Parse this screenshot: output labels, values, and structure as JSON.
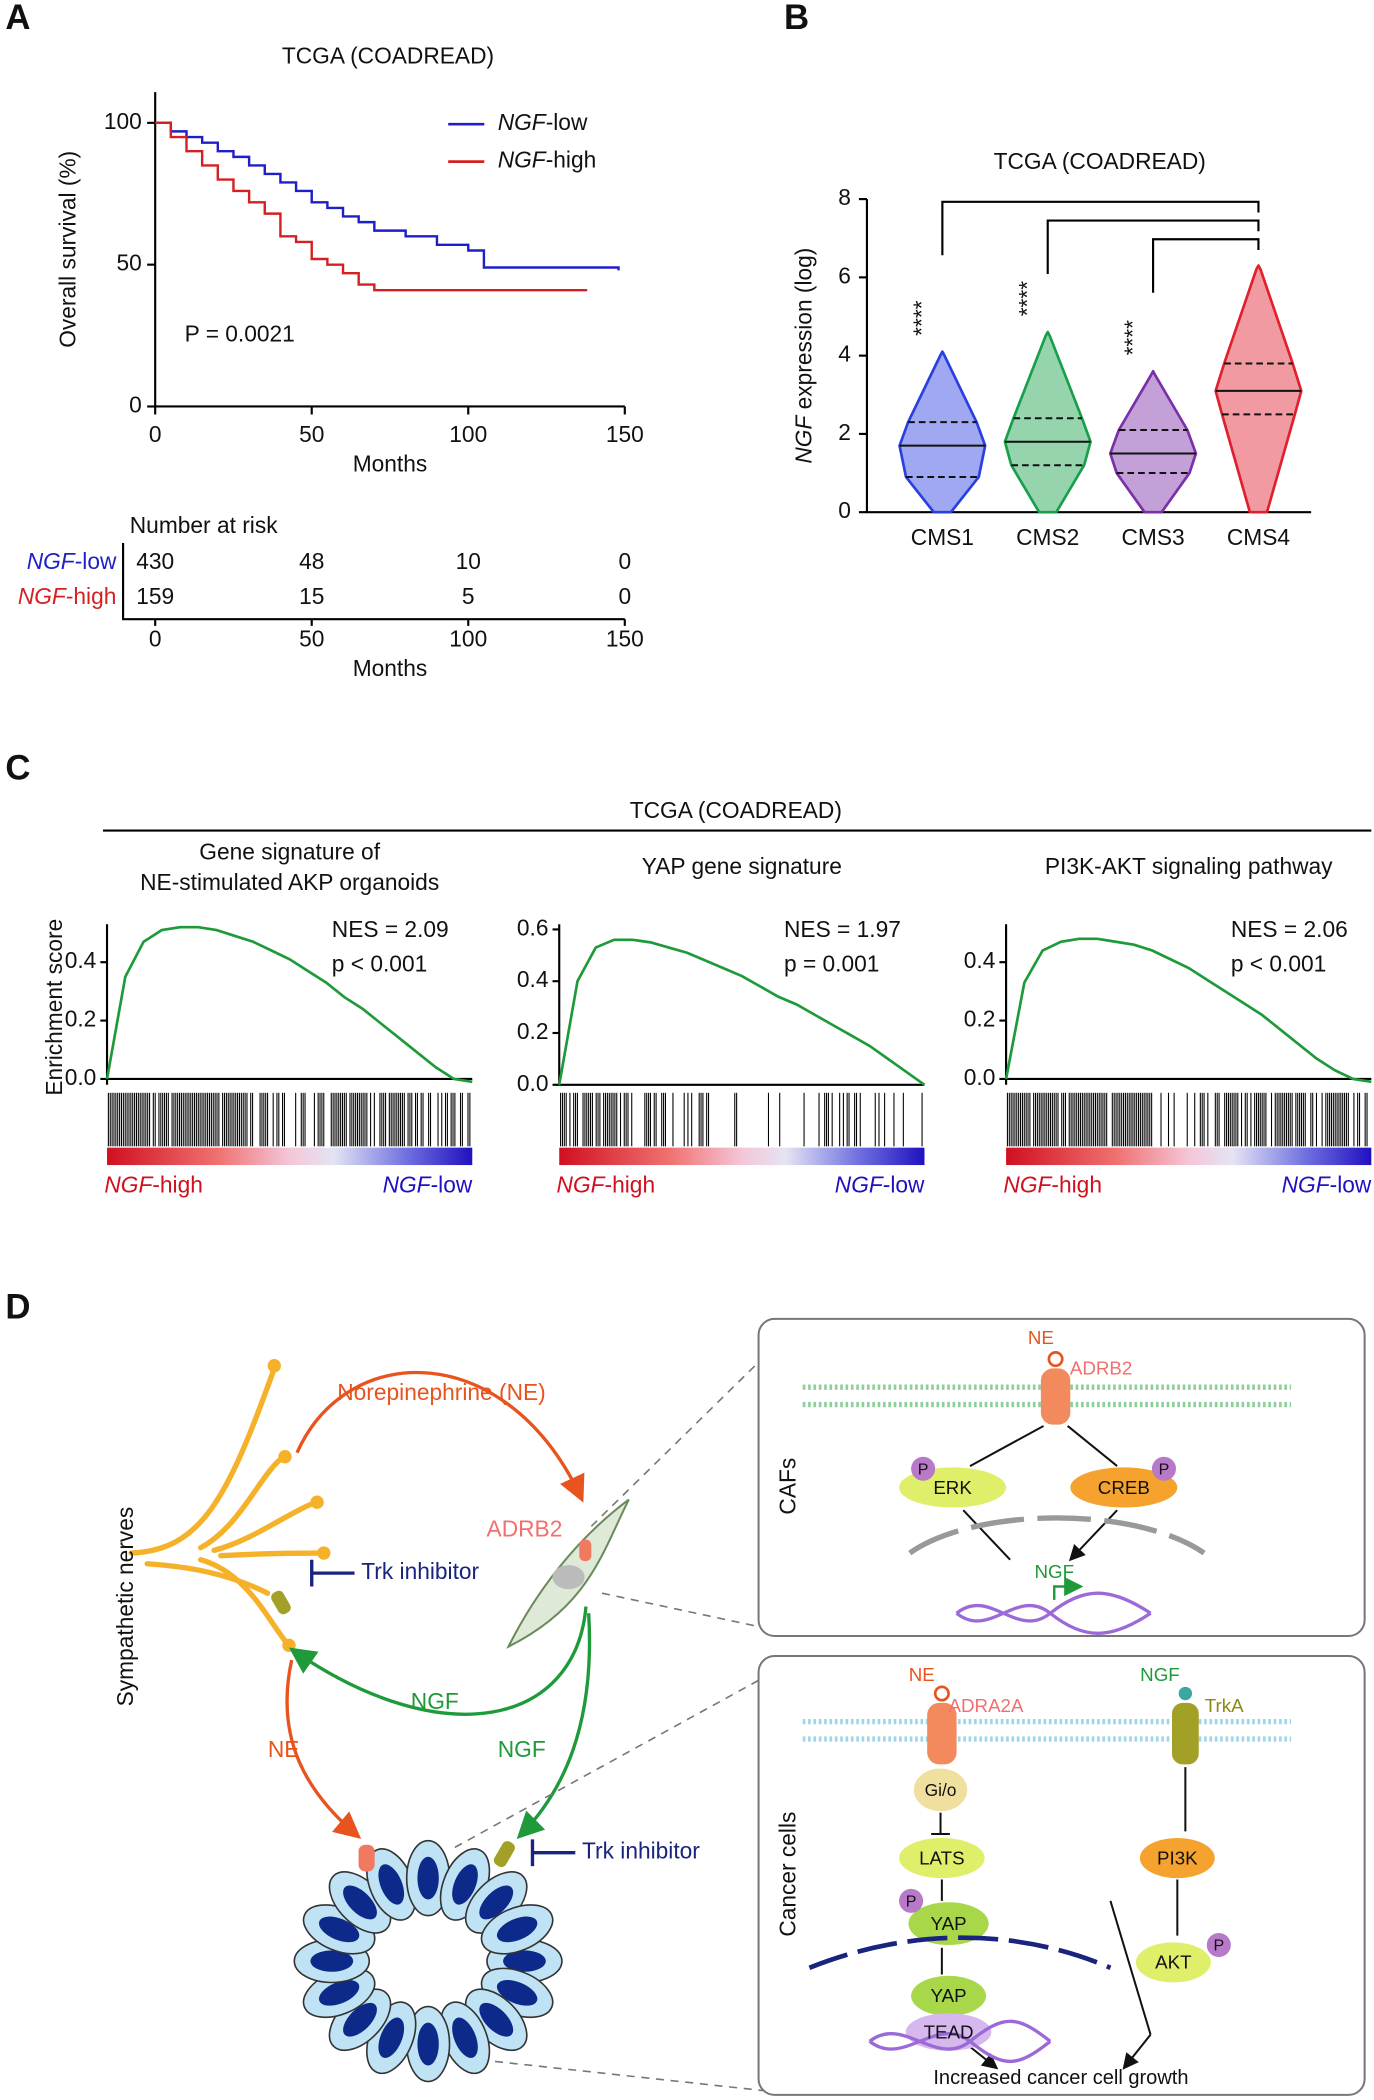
{
  "panel_labels": [
    "A",
    "B",
    "C",
    "D"
  ],
  "panel_c_header": "TCGA (COADREAD)",
  "chart_data": [
    {
      "type": "km",
      "title": "TCGA (COADREAD)",
      "x_label": "Months",
      "y_label": "Overall survival (%)",
      "annotation": "P = 0.0021",
      "xlim": [
        0,
        150
      ],
      "ylim": [
        0,
        100
      ],
      "xticks": [
        0,
        50,
        100,
        150
      ],
      "yticks": [
        0,
        50,
        100
      ],
      "series": [
        {
          "name": "NGF-low",
          "color": "#1f1fc8",
          "x": [
            0,
            5,
            10,
            15,
            20,
            25,
            30,
            35,
            40,
            45,
            50,
            55,
            60,
            65,
            70,
            80,
            90,
            100,
            105,
            148
          ],
          "values": [
            100,
            97,
            95,
            93,
            90,
            88,
            85,
            82,
            79,
            76,
            72,
            70,
            67,
            65,
            62,
            60,
            57,
            55,
            49,
            48
          ]
        },
        {
          "name": "NGF-high",
          "color": "#d42020",
          "x": [
            0,
            5,
            10,
            15,
            20,
            25,
            30,
            35,
            40,
            45,
            50,
            55,
            60,
            65,
            70,
            138
          ],
          "values": [
            100,
            95,
            90,
            85,
            80,
            76,
            72,
            68,
            60,
            58,
            52,
            50,
            47,
            43,
            41,
            41
          ]
        }
      ],
      "risk_table": {
        "title": "Number at risk",
        "x_label": "Months",
        "rows": [
          {
            "name": "NGF-low",
            "values": [
              430,
              48,
              10,
              0
            ]
          },
          {
            "name": "NGF-high",
            "values": [
              159,
              15,
              5,
              0
            ]
          }
        ]
      }
    },
    {
      "type": "violin",
      "title": "TCGA (COADREAD)",
      "y_label": "NGF expression (log)",
      "categories": [
        "CMS1",
        "CMS2",
        "CMS3",
        "CMS4"
      ],
      "colors": [
        "#2a3fe0",
        "#17a04a",
        "#7b2fa8",
        "#e0202e"
      ],
      "min": [
        0,
        0,
        0,
        0
      ],
      "q1": [
        0.9,
        1.2,
        1.0,
        2.5
      ],
      "median": [
        1.7,
        1.8,
        1.5,
        3.1
      ],
      "q3": [
        2.3,
        2.4,
        2.1,
        3.8
      ],
      "max": [
        4.0,
        4.5,
        3.5,
        6.2
      ],
      "ylim": [
        0,
        8
      ],
      "yticks": [
        0,
        2,
        4,
        6,
        8
      ],
      "significance_labels": [
        "****",
        "****",
        "****"
      ]
    },
    {
      "type": "gsea",
      "title": [
        "Gene signature of",
        "NE-stimulated AKP organoids"
      ],
      "y_label": "Enrichment score",
      "nes": "NES = 2.09",
      "p": "p < 0.001",
      "color": "#1e9a3a",
      "ylim": [
        -0.02,
        0.53
      ],
      "yticks": [
        {
          "value": 0,
          "label": "0.0"
        },
        0.2,
        0.4
      ],
      "left_label": "NGF-high",
      "right_label": "NGF-low",
      "values": [
        0,
        0.35,
        0.47,
        0.51,
        0.52,
        0.52,
        0.51,
        0.49,
        0.47,
        0.44,
        0.41,
        0.37,
        0.33,
        0.28,
        0.24,
        0.19,
        0.14,
        0.09,
        0.04,
        0.0,
        -0.01
      ]
    },
    {
      "type": "gsea",
      "title": [
        "YAP gene signature"
      ],
      "nes": "NES = 1.97",
      "p": "p = 0.001",
      "color": "#1e9a3a",
      "ylim": [
        0,
        0.62
      ],
      "yticks": [
        {
          "value": 0,
          "label": "0.0"
        },
        0.2,
        0.4,
        0.6
      ],
      "left_label": "NGF-high",
      "right_label": "NGF-low",
      "values": [
        0,
        0.4,
        0.53,
        0.56,
        0.56,
        0.55,
        0.53,
        0.51,
        0.48,
        0.45,
        0.42,
        0.38,
        0.34,
        0.31,
        0.27,
        0.23,
        0.19,
        0.15,
        0.1,
        0.05,
        0.0
      ]
    },
    {
      "type": "gsea",
      "title": [
        "PI3K-AKT signaling pathway"
      ],
      "nes": "NES = 2.06",
      "p": "p < 0.001",
      "color": "#1e9a3a",
      "ylim": [
        -0.02,
        0.53
      ],
      "yticks": [
        {
          "value": 0,
          "label": "0.0"
        },
        0.2,
        0.4
      ],
      "left_label": "NGF-high",
      "right_label": "NGF-low",
      "values": [
        0,
        0.33,
        0.44,
        0.47,
        0.48,
        0.48,
        0.47,
        0.46,
        0.44,
        0.41,
        0.38,
        0.34,
        0.3,
        0.26,
        0.22,
        0.17,
        0.12,
        0.07,
        0.03,
        0.0,
        -0.01
      ]
    }
  ],
  "diagram": {
    "norepinephrine": "Norepinephrine (NE)",
    "sympathetic_nerves": "Sympathetic nerves",
    "adrb2": "ADRB2",
    "trk_inhibitor": "Trk inhibitor",
    "ngf": "NGF",
    "ne": "NE",
    "cafs": "CAFs",
    "erk": "ERK",
    "creb": "CREB",
    "phospho": "P",
    "cancer_cells": "Cancer cells",
    "adra2a": "ADRA2A",
    "trka": "TrkA",
    "gio": "Gi/o",
    "lats": "LATS",
    "yap": "YAP",
    "tead": "TEAD",
    "pi3k": "PI3K",
    "akt": "AKT",
    "outcome": "Increased cancer cell growth"
  }
}
